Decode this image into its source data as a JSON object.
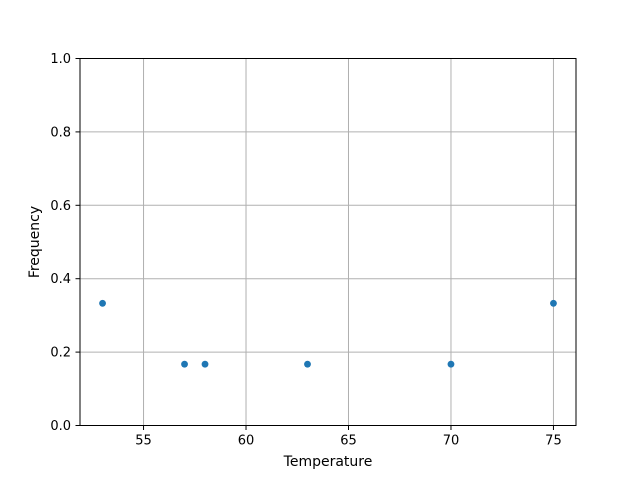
{
  "chart_data": {
    "type": "scatter",
    "title": "",
    "xlabel": "Temperature",
    "ylabel": "Frequency",
    "x": [
      53,
      57,
      58,
      63,
      70,
      75
    ],
    "y": [
      0.333,
      0.167,
      0.167,
      0.167,
      0.167,
      0.333
    ],
    "xlim": [
      51.9,
      76.1
    ],
    "ylim": [
      0.0,
      1.0
    ],
    "xticks": [
      55,
      60,
      65,
      70,
      75
    ],
    "xtick_labels": [
      "55",
      "60",
      "65",
      "70",
      "75"
    ],
    "yticks": [
      0.0,
      0.2,
      0.4,
      0.6,
      0.8,
      1.0
    ],
    "ytick_labels": [
      "0.0",
      "0.2",
      "0.4",
      "0.6",
      "0.8",
      "1.0"
    ],
    "grid": true,
    "legend_position": "none",
    "colors": {
      "marker": "#1f77b4",
      "grid": "#b0b0b0",
      "spine": "#000000",
      "text": "#000000",
      "background": "#ffffff"
    }
  }
}
